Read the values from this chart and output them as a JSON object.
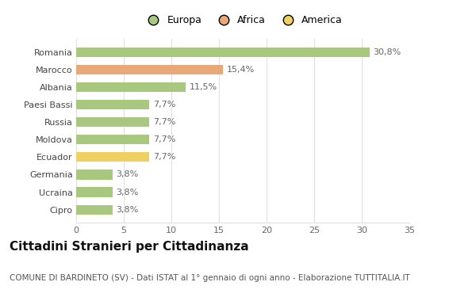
{
  "categories": [
    "Cipro",
    "Ucraina",
    "Germania",
    "Ecuador",
    "Moldova",
    "Russia",
    "Paesi Bassi",
    "Albania",
    "Marocco",
    "Romania"
  ],
  "values": [
    3.8,
    3.8,
    3.8,
    7.7,
    7.7,
    7.7,
    7.7,
    11.5,
    15.4,
    30.8
  ],
  "labels": [
    "3,8%",
    "3,8%",
    "3,8%",
    "7,7%",
    "7,7%",
    "7,7%",
    "7,7%",
    "11,5%",
    "15,4%",
    "30,8%"
  ],
  "colors": [
    "#a8c880",
    "#a8c880",
    "#a8c880",
    "#f0d060",
    "#a8c880",
    "#a8c880",
    "#a8c880",
    "#a8c880",
    "#e8a878",
    "#a8c880"
  ],
  "legend_items": [
    {
      "label": "Europa",
      "color": "#a8c880"
    },
    {
      "label": "Africa",
      "color": "#e8a878"
    },
    {
      "label": "America",
      "color": "#f0d060"
    }
  ],
  "xlim": [
    0,
    35
  ],
  "xticks": [
    0,
    5,
    10,
    15,
    20,
    25,
    30,
    35
  ],
  "title": "Cittadini Stranieri per Cittadinanza",
  "subtitle": "COMUNE DI BARDINETO (SV) - Dati ISTAT al 1° gennaio di ogni anno - Elaborazione TUTTITALIA.IT",
  "bg_color": "#ffffff",
  "grid_color": "#e0e0e0",
  "bar_height": 0.55,
  "label_fontsize": 8,
  "tick_fontsize": 8,
  "title_fontsize": 11,
  "subtitle_fontsize": 7.5,
  "legend_fontsize": 9
}
